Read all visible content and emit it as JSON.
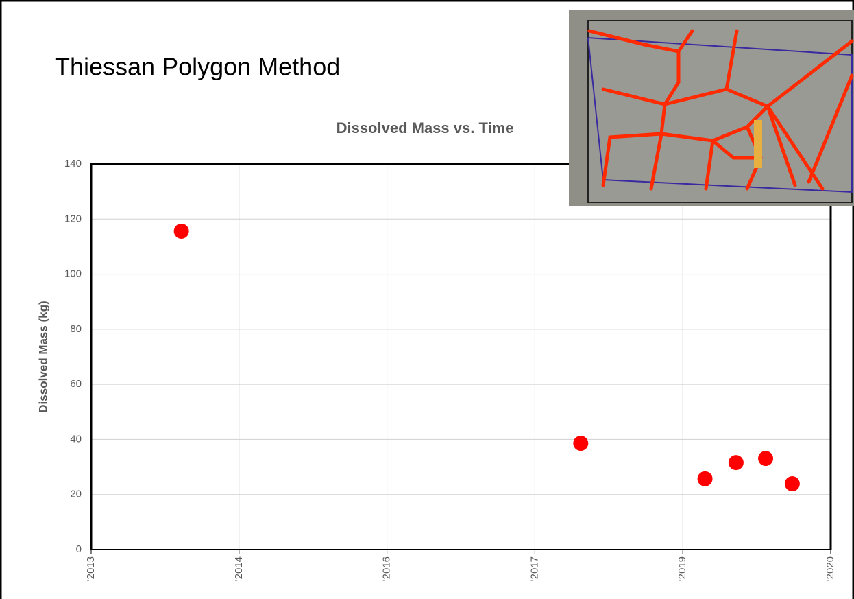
{
  "slide_title": "Thiessan Polygon Method",
  "chart_data": {
    "type": "scatter",
    "title": "Dissolved Mass vs. Time",
    "y_label": "Dissolved Mass (kg)",
    "x": [
      0.61,
      3.31,
      4.15,
      4.36,
      4.56,
      4.74
    ],
    "values": [
      115.6,
      38.6,
      25.7,
      31.6,
      33.1,
      23.9
    ],
    "color": "#ff0000",
    "xlim": [
      0,
      5
    ],
    "xticks": [
      {
        "value": 0,
        "label": "'2013"
      },
      {
        "value": 1,
        "label": "'2014"
      },
      {
        "value": 2,
        "label": "'2016"
      },
      {
        "value": 3,
        "label": "'2017"
      },
      {
        "value": 4,
        "label": "'2019"
      },
      {
        "value": 5,
        "label": "'2020"
      }
    ],
    "ylim": [
      0,
      140
    ],
    "yticks": [
      0,
      20,
      40,
      60,
      80,
      100,
      120,
      140
    ],
    "grid": true
  }
}
